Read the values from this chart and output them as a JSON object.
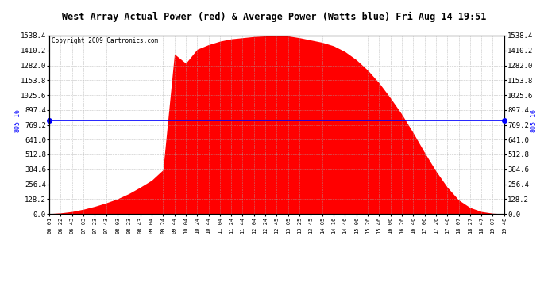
{
  "title": "West Array Actual Power (red) & Average Power (Watts blue) Fri Aug 14 19:51",
  "copyright": "Copyright 2009 Cartronics.com",
  "ymin": 0.0,
  "ymax": 1538.4,
  "yticks": [
    0.0,
    128.2,
    256.4,
    384.6,
    512.8,
    641.0,
    769.2,
    897.4,
    1025.6,
    1153.8,
    1282.0,
    1410.2,
    1538.4
  ],
  "avg_power": 805.16,
  "avg_label": "805.16",
  "fill_color": "#FF0000",
  "line_color": "#0000FF",
  "background_color": "#FFFFFF",
  "grid_color": "#AAAAAA",
  "x_labels": [
    "06:01",
    "06:22",
    "06:43",
    "07:03",
    "07:23",
    "07:43",
    "08:03",
    "08:23",
    "08:43",
    "09:04",
    "09:24",
    "09:44",
    "10:04",
    "10:24",
    "10:44",
    "11:04",
    "11:24",
    "11:44",
    "12:04",
    "12:24",
    "12:45",
    "13:05",
    "13:25",
    "13:45",
    "14:05",
    "14:16",
    "14:46",
    "15:06",
    "15:26",
    "15:46",
    "16:06",
    "16:26",
    "16:46",
    "17:06",
    "17:26",
    "17:46",
    "18:07",
    "18:27",
    "18:47",
    "19:07",
    "19:48"
  ],
  "power_values": [
    2,
    8,
    20,
    40,
    65,
    95,
    130,
    175,
    230,
    290,
    380,
    1380,
    1300,
    1420,
    1460,
    1490,
    1510,
    1520,
    1530,
    1535,
    1538,
    1535,
    1520,
    1500,
    1480,
    1450,
    1400,
    1330,
    1240,
    1130,
    1000,
    860,
    700,
    530,
    370,
    230,
    120,
    55,
    20,
    5,
    1
  ],
  "figwidth": 6.9,
  "figheight": 3.75,
  "dpi": 100
}
